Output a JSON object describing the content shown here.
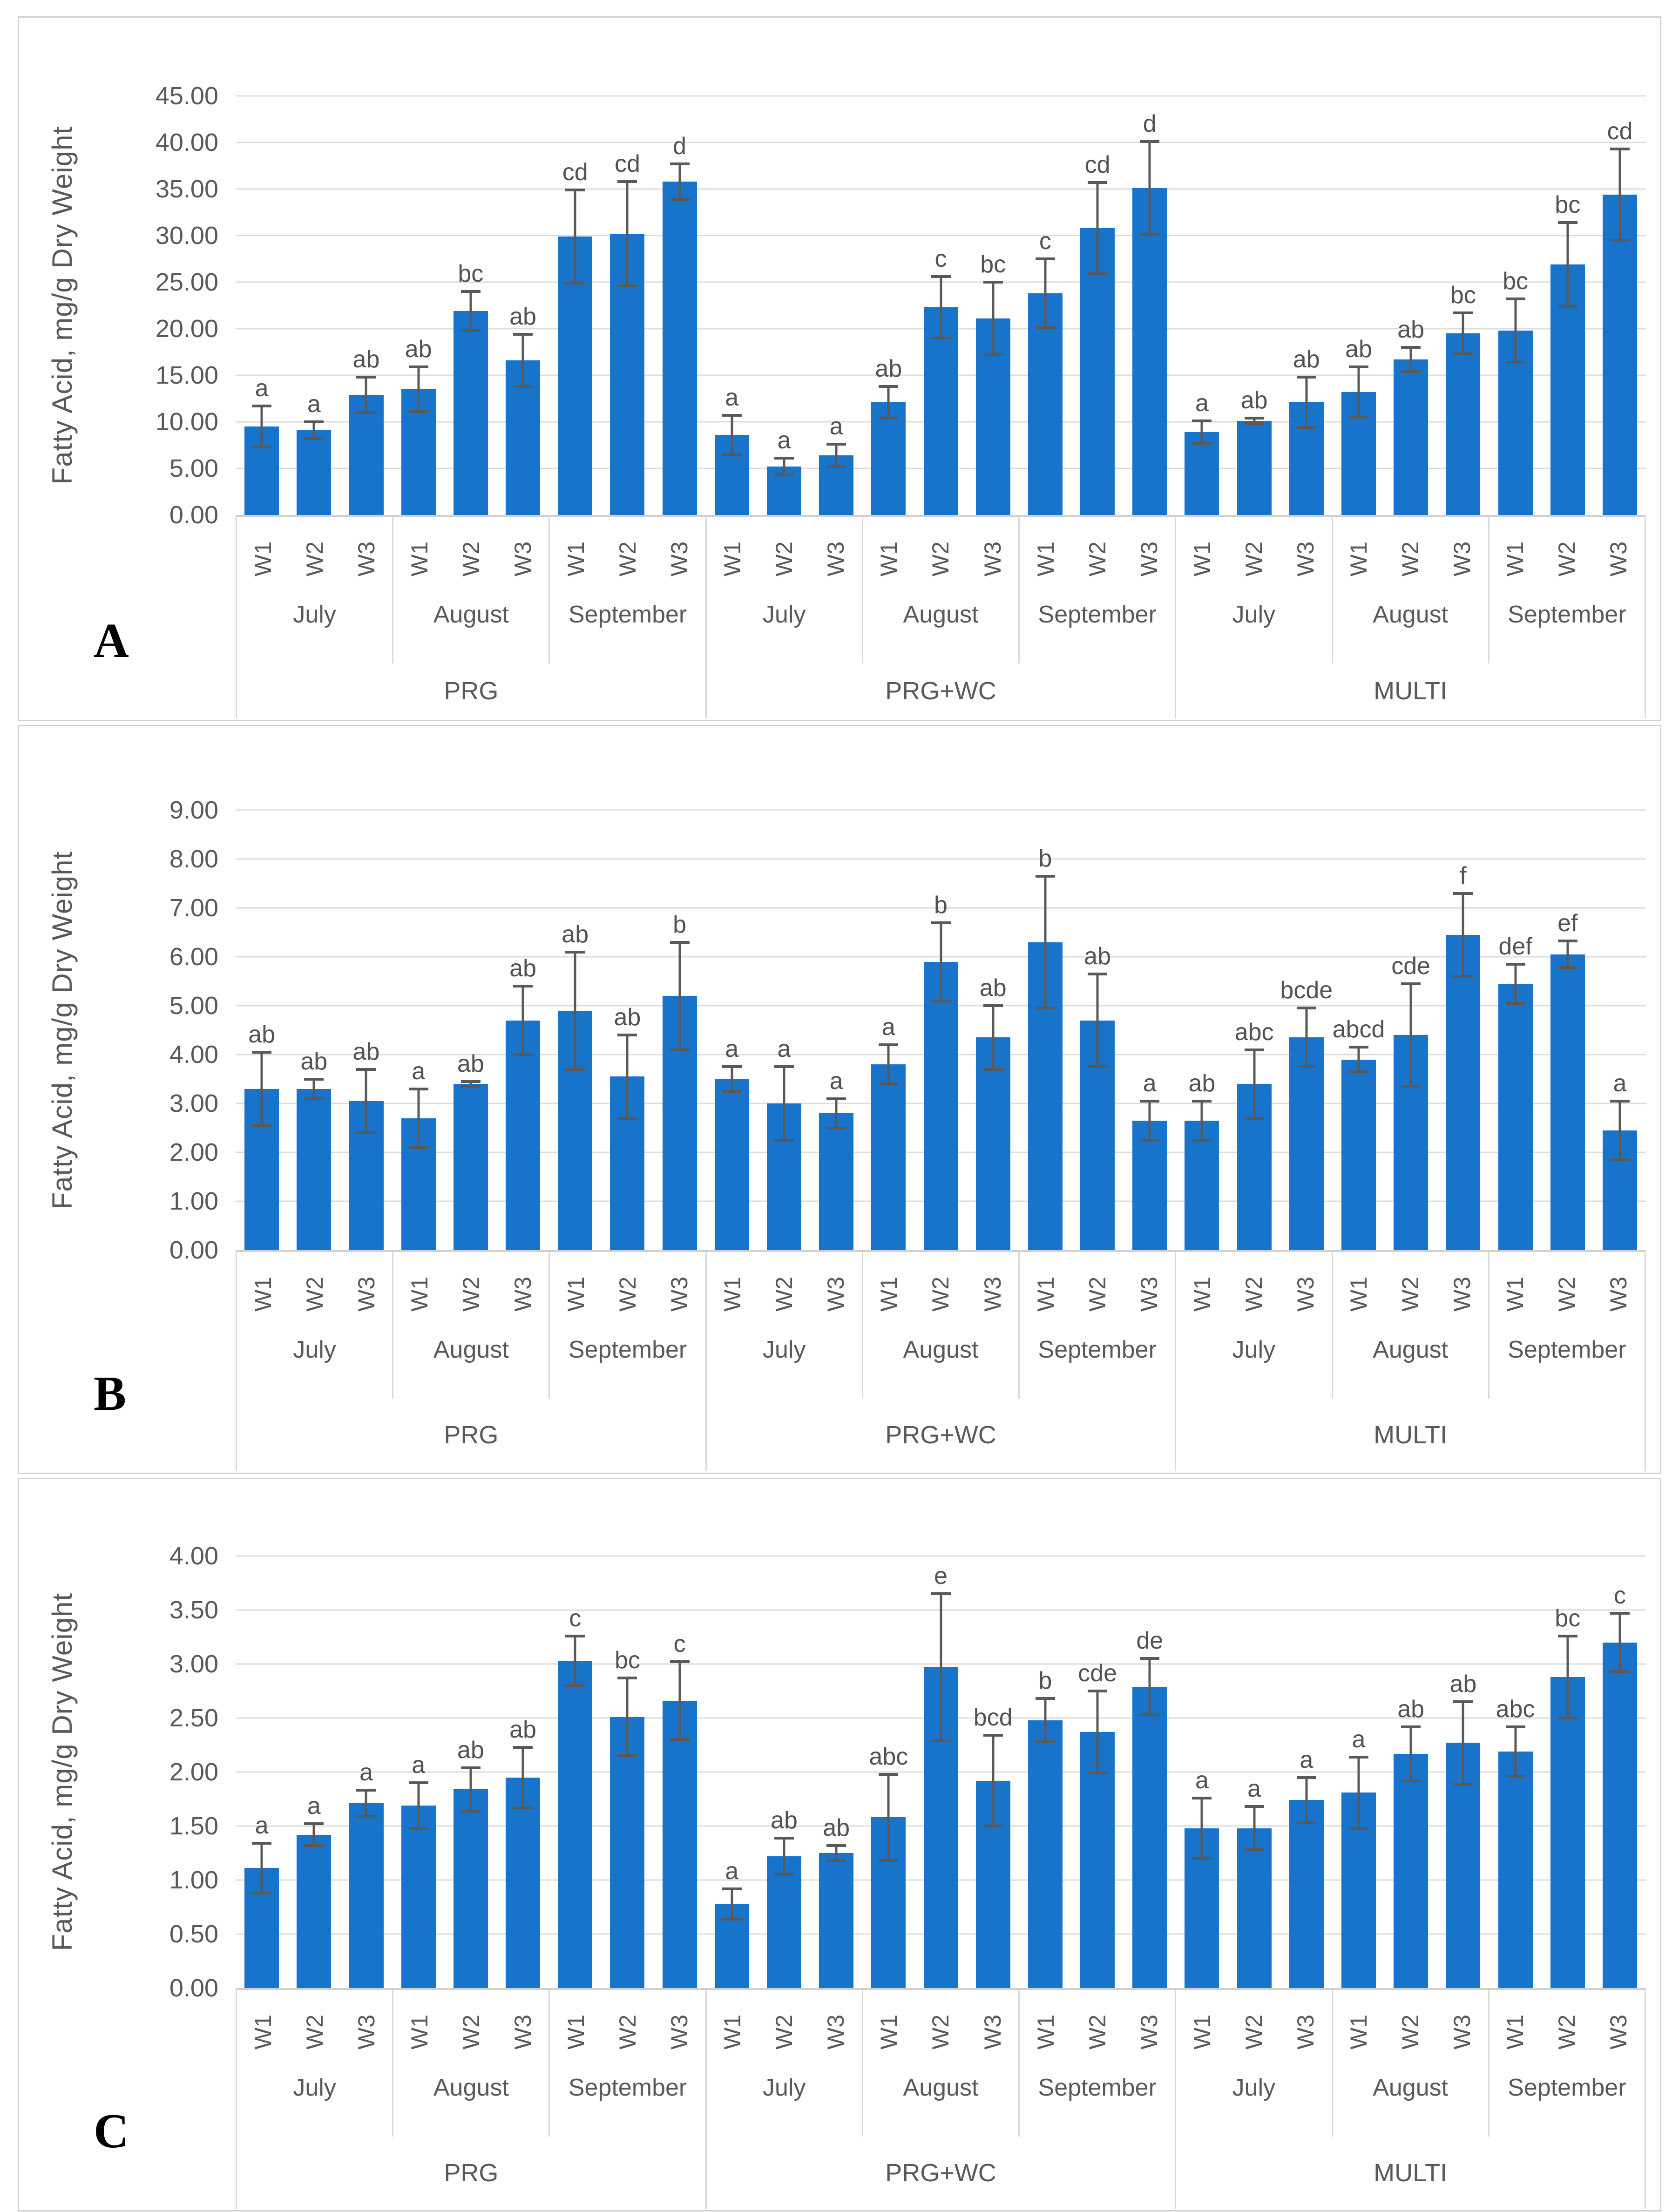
{
  "figure": {
    "panel_labels": [
      "A",
      "B",
      "C"
    ],
    "shared_ylabel": "Fatty Acid, mg/g Dry Weight",
    "colors": {
      "bar_fill": "#1874CB",
      "error_bar": "#595959",
      "gridline": "#D9D9D9",
      "axis_text": "#595959",
      "significance_letter": "#525252",
      "panel_border": "#D2D2D2",
      "panel_letter": "#000000"
    }
  },
  "chart_data": [
    {
      "type": "bar",
      "panel_label": "A",
      "ylabel": "Fatty Acid, mg/g Dry Weight",
      "ylim": [
        0,
        45
      ],
      "ytick_step": 5,
      "grid": true,
      "legend": false,
      "ytick_labels": [
        "45.00",
        "40.00",
        "35.00",
        "30.00",
        "25.00",
        "20.00",
        "15.00",
        "10.00",
        "5.00",
        "0.00"
      ],
      "treatments": [
        "PRG",
        "PRG+WC",
        "MULTI"
      ],
      "months": [
        "July",
        "August",
        "September"
      ],
      "weeks": [
        "W1",
        "W2",
        "W3"
      ],
      "bars": [
        {
          "treatment": "PRG",
          "month": "July",
          "week": "W1",
          "value": 9.5,
          "error": 2.2,
          "letter": "a"
        },
        {
          "treatment": "PRG",
          "month": "July",
          "week": "W2",
          "value": 9.1,
          "error": 0.9,
          "letter": "a"
        },
        {
          "treatment": "PRG",
          "month": "July",
          "week": "W3",
          "value": 12.9,
          "error": 1.9,
          "letter": "ab"
        },
        {
          "treatment": "PRG",
          "month": "August",
          "week": "W1",
          "value": 13.5,
          "error": 2.4,
          "letter": "ab"
        },
        {
          "treatment": "PRG",
          "month": "August",
          "week": "W2",
          "value": 21.9,
          "error": 2.1,
          "letter": "bc"
        },
        {
          "treatment": "PRG",
          "month": "August",
          "week": "W3",
          "value": 16.6,
          "error": 2.8,
          "letter": "ab"
        },
        {
          "treatment": "PRG",
          "month": "September",
          "week": "W1",
          "value": 29.9,
          "error": 5.0,
          "letter": "cd"
        },
        {
          "treatment": "PRG",
          "month": "September",
          "week": "W2",
          "value": 30.2,
          "error": 5.6,
          "letter": "cd"
        },
        {
          "treatment": "PRG",
          "month": "September",
          "week": "W3",
          "value": 35.8,
          "error": 1.9,
          "letter": "d"
        },
        {
          "treatment": "PRG+WC",
          "month": "July",
          "week": "W1",
          "value": 8.6,
          "error": 2.1,
          "letter": "a"
        },
        {
          "treatment": "PRG+WC",
          "month": "July",
          "week": "W2",
          "value": 5.2,
          "error": 0.9,
          "letter": "a"
        },
        {
          "treatment": "PRG+WC",
          "month": "July",
          "week": "W3",
          "value": 6.4,
          "error": 1.2,
          "letter": "a"
        },
        {
          "treatment": "PRG+WC",
          "month": "August",
          "week": "W1",
          "value": 12.1,
          "error": 1.7,
          "letter": "ab"
        },
        {
          "treatment": "PRG+WC",
          "month": "August",
          "week": "W2",
          "value": 22.3,
          "error": 3.3,
          "letter": "c"
        },
        {
          "treatment": "PRG+WC",
          "month": "August",
          "week": "W3",
          "value": 21.1,
          "error": 3.9,
          "letter": "bc"
        },
        {
          "treatment": "PRG+WC",
          "month": "September",
          "week": "W1",
          "value": 23.8,
          "error": 3.7,
          "letter": "c"
        },
        {
          "treatment": "PRG+WC",
          "month": "September",
          "week": "W2",
          "value": 30.8,
          "error": 4.9,
          "letter": "cd"
        },
        {
          "treatment": "PRG+WC",
          "month": "September",
          "week": "W3",
          "value": 35.1,
          "error": 5.0,
          "letter": "d"
        },
        {
          "treatment": "MULTI",
          "month": "July",
          "week": "W1",
          "value": 8.9,
          "error": 1.2,
          "letter": "a"
        },
        {
          "treatment": "MULTI",
          "month": "July",
          "week": "W2",
          "value": 10.1,
          "error": 0.3,
          "letter": "ab"
        },
        {
          "treatment": "MULTI",
          "month": "July",
          "week": "W3",
          "value": 12.1,
          "error": 2.7,
          "letter": "ab"
        },
        {
          "treatment": "MULTI",
          "month": "August",
          "week": "W1",
          "value": 13.2,
          "error": 2.7,
          "letter": "ab"
        },
        {
          "treatment": "MULTI",
          "month": "August",
          "week": "W2",
          "value": 16.7,
          "error": 1.3,
          "letter": "ab"
        },
        {
          "treatment": "MULTI",
          "month": "August",
          "week": "W3",
          "value": 19.5,
          "error": 2.2,
          "letter": "bc"
        },
        {
          "treatment": "MULTI",
          "month": "September",
          "week": "W1",
          "value": 19.8,
          "error": 3.4,
          "letter": "bc"
        },
        {
          "treatment": "MULTI",
          "month": "September",
          "week": "W2",
          "value": 26.9,
          "error": 4.5,
          "letter": "bc"
        },
        {
          "treatment": "MULTI",
          "month": "September",
          "week": "W3",
          "value": 34.4,
          "error": 4.9,
          "letter": "cd"
        }
      ]
    },
    {
      "type": "bar",
      "panel_label": "B",
      "ylabel": "Fatty Acid, mg/g Dry Weight",
      "ylim": [
        0,
        9
      ],
      "ytick_step": 1,
      "grid": true,
      "legend": false,
      "ytick_labels": [
        "9.00",
        "8.00",
        "7.00",
        "6.00",
        "5.00",
        "4.00",
        "3.00",
        "2.00",
        "1.00",
        "0.00"
      ],
      "treatments": [
        "PRG",
        "PRG+WC",
        "MULTI"
      ],
      "months": [
        "July",
        "August",
        "September"
      ],
      "weeks": [
        "W1",
        "W2",
        "W3"
      ],
      "bars": [
        {
          "treatment": "PRG",
          "month": "July",
          "week": "W1",
          "value": 3.3,
          "error": 0.75,
          "letter": "ab"
        },
        {
          "treatment": "PRG",
          "month": "July",
          "week": "W2",
          "value": 3.3,
          "error": 0.2,
          "letter": "ab"
        },
        {
          "treatment": "PRG",
          "month": "July",
          "week": "W3",
          "value": 3.05,
          "error": 0.65,
          "letter": "ab"
        },
        {
          "treatment": "PRG",
          "month": "August",
          "week": "W1",
          "value": 2.7,
          "error": 0.6,
          "letter": "a"
        },
        {
          "treatment": "PRG",
          "month": "August",
          "week": "W2",
          "value": 3.4,
          "error": 0.05,
          "letter": "ab"
        },
        {
          "treatment": "PRG",
          "month": "August",
          "week": "W3",
          "value": 4.7,
          "error": 0.7,
          "letter": "ab"
        },
        {
          "treatment": "PRG",
          "month": "September",
          "week": "W1",
          "value": 4.9,
          "error": 1.2,
          "letter": "ab"
        },
        {
          "treatment": "PRG",
          "month": "September",
          "week": "W2",
          "value": 3.55,
          "error": 0.85,
          "letter": "ab"
        },
        {
          "treatment": "PRG",
          "month": "September",
          "week": "W3",
          "value": 5.2,
          "error": 1.1,
          "letter": "b"
        },
        {
          "treatment": "PRG+WC",
          "month": "July",
          "week": "W1",
          "value": 3.5,
          "error": 0.25,
          "letter": "a"
        },
        {
          "treatment": "PRG+WC",
          "month": "July",
          "week": "W2",
          "value": 3.0,
          "error": 0.75,
          "letter": "a"
        },
        {
          "treatment": "PRG+WC",
          "month": "July",
          "week": "W3",
          "value": 2.8,
          "error": 0.3,
          "letter": "a"
        },
        {
          "treatment": "PRG+WC",
          "month": "August",
          "week": "W1",
          "value": 3.8,
          "error": 0.4,
          "letter": "a"
        },
        {
          "treatment": "PRG+WC",
          "month": "August",
          "week": "W2",
          "value": 5.9,
          "error": 0.8,
          "letter": "b"
        },
        {
          "treatment": "PRG+WC",
          "month": "August",
          "week": "W3",
          "value": 4.35,
          "error": 0.65,
          "letter": "ab"
        },
        {
          "treatment": "PRG+WC",
          "month": "September",
          "week": "W1",
          "value": 6.3,
          "error": 1.35,
          "letter": "b"
        },
        {
          "treatment": "PRG+WC",
          "month": "September",
          "week": "W2",
          "value": 4.7,
          "error": 0.95,
          "letter": "ab"
        },
        {
          "treatment": "PRG+WC",
          "month": "September",
          "week": "W3",
          "value": 2.65,
          "error": 0.4,
          "letter": "a"
        },
        {
          "treatment": "MULTI",
          "month": "July",
          "week": "W1",
          "value": 2.65,
          "error": 0.4,
          "letter": "ab"
        },
        {
          "treatment": "MULTI",
          "month": "July",
          "week": "W2",
          "value": 3.4,
          "error": 0.7,
          "letter": "abc"
        },
        {
          "treatment": "MULTI",
          "month": "July",
          "week": "W3",
          "value": 4.35,
          "error": 0.6,
          "letter": "bcde"
        },
        {
          "treatment": "MULTI",
          "month": "August",
          "week": "W1",
          "value": 3.9,
          "error": 0.25,
          "letter": "abcd"
        },
        {
          "treatment": "MULTI",
          "month": "August",
          "week": "W2",
          "value": 4.4,
          "error": 1.05,
          "letter": "cde"
        },
        {
          "treatment": "MULTI",
          "month": "August",
          "week": "W3",
          "value": 6.45,
          "error": 0.85,
          "letter": "f"
        },
        {
          "treatment": "MULTI",
          "month": "September",
          "week": "W1",
          "value": 5.45,
          "error": 0.4,
          "letter": "def"
        },
        {
          "treatment": "MULTI",
          "month": "September",
          "week": "W2",
          "value": 6.05,
          "error": 0.27,
          "letter": "ef"
        },
        {
          "treatment": "MULTI",
          "month": "September",
          "week": "W3",
          "value": 2.45,
          "error": 0.6,
          "letter": "a"
        }
      ]
    },
    {
      "type": "bar",
      "panel_label": "C",
      "ylabel": "Fatty Acid, mg/g Dry Weight",
      "ylim": [
        0,
        4
      ],
      "ytick_step": 0.5,
      "grid": true,
      "legend": false,
      "ytick_labels": [
        "4.00",
        "3.50",
        "3.00",
        "2.50",
        "2.00",
        "1.50",
        "1.00",
        "0.50",
        "0.00"
      ],
      "treatments": [
        "PRG",
        "PRG+WC",
        "MULTI"
      ],
      "months": [
        "July",
        "August",
        "September"
      ],
      "weeks": [
        "W1",
        "W2",
        "W3"
      ],
      "bars": [
        {
          "treatment": "PRG",
          "month": "July",
          "week": "W1",
          "value": 1.11,
          "error": 0.23,
          "letter": "a"
        },
        {
          "treatment": "PRG",
          "month": "July",
          "week": "W2",
          "value": 1.42,
          "error": 0.1,
          "letter": "a"
        },
        {
          "treatment": "PRG",
          "month": "July",
          "week": "W3",
          "value": 1.71,
          "error": 0.12,
          "letter": "a"
        },
        {
          "treatment": "PRG",
          "month": "August",
          "week": "W1",
          "value": 1.69,
          "error": 0.21,
          "letter": "a"
        },
        {
          "treatment": "PRG",
          "month": "August",
          "week": "W2",
          "value": 1.84,
          "error": 0.2,
          "letter": "ab"
        },
        {
          "treatment": "PRG",
          "month": "August",
          "week": "W3",
          "value": 1.95,
          "error": 0.28,
          "letter": "ab"
        },
        {
          "treatment": "PRG",
          "month": "September",
          "week": "W1",
          "value": 3.03,
          "error": 0.23,
          "letter": "c"
        },
        {
          "treatment": "PRG",
          "month": "September",
          "week": "W2",
          "value": 2.51,
          "error": 0.36,
          "letter": "bc"
        },
        {
          "treatment": "PRG",
          "month": "September",
          "week": "W3",
          "value": 2.66,
          "error": 0.36,
          "letter": "c"
        },
        {
          "treatment": "PRG+WC",
          "month": "July",
          "week": "W1",
          "value": 0.78,
          "error": 0.14,
          "letter": "a"
        },
        {
          "treatment": "PRG+WC",
          "month": "July",
          "week": "W2",
          "value": 1.22,
          "error": 0.17,
          "letter": "ab"
        },
        {
          "treatment": "PRG+WC",
          "month": "July",
          "week": "W3",
          "value": 1.25,
          "error": 0.07,
          "letter": "ab"
        },
        {
          "treatment": "PRG+WC",
          "month": "August",
          "week": "W1",
          "value": 1.58,
          "error": 0.4,
          "letter": "abc"
        },
        {
          "treatment": "PRG+WC",
          "month": "August",
          "week": "W2",
          "value": 2.97,
          "error": 0.68,
          "letter": "e"
        },
        {
          "treatment": "PRG+WC",
          "month": "August",
          "week": "W3",
          "value": 1.92,
          "error": 0.42,
          "letter": "bcd"
        },
        {
          "treatment": "PRG+WC",
          "month": "September",
          "week": "W1",
          "value": 2.48,
          "error": 0.2,
          "letter": "b"
        },
        {
          "treatment": "PRG+WC",
          "month": "September",
          "week": "W2",
          "value": 2.37,
          "error": 0.38,
          "letter": "cde"
        },
        {
          "treatment": "PRG+WC",
          "month": "September",
          "week": "W3",
          "value": 2.79,
          "error": 0.26,
          "letter": "de"
        },
        {
          "treatment": "MULTI",
          "month": "July",
          "week": "W1",
          "value": 1.48,
          "error": 0.28,
          "letter": "a"
        },
        {
          "treatment": "MULTI",
          "month": "July",
          "week": "W2",
          "value": 1.48,
          "error": 0.2,
          "letter": "a"
        },
        {
          "treatment": "MULTI",
          "month": "July",
          "week": "W3",
          "value": 1.74,
          "error": 0.21,
          "letter": "a"
        },
        {
          "treatment": "MULTI",
          "month": "August",
          "week": "W1",
          "value": 1.81,
          "error": 0.33,
          "letter": "a"
        },
        {
          "treatment": "MULTI",
          "month": "August",
          "week": "W2",
          "value": 2.17,
          "error": 0.25,
          "letter": "ab"
        },
        {
          "treatment": "MULTI",
          "month": "August",
          "week": "W3",
          "value": 2.27,
          "error": 0.38,
          "letter": "ab"
        },
        {
          "treatment": "MULTI",
          "month": "September",
          "week": "W1",
          "value": 2.19,
          "error": 0.23,
          "letter": "abc"
        },
        {
          "treatment": "MULTI",
          "month": "September",
          "week": "W2",
          "value": 2.88,
          "error": 0.38,
          "letter": "bc"
        },
        {
          "treatment": "MULTI",
          "month": "September",
          "week": "W3",
          "value": 3.2,
          "error": 0.27,
          "letter": "c"
        }
      ]
    }
  ]
}
